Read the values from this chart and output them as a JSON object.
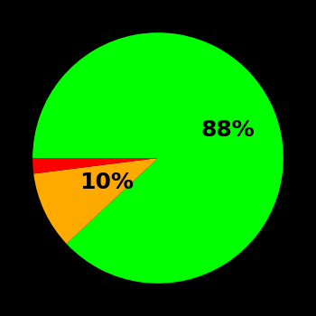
{
  "slices": [
    88,
    10,
    2
  ],
  "colors": [
    "#00ff00",
    "#ffaa00",
    "#ff0000"
  ],
  "labels": [
    "88%",
    "10%",
    ""
  ],
  "background_color": "#000000",
  "startangle": 180,
  "figsize": [
    3.5,
    3.5
  ],
  "dpi": 100,
  "text_color": "#000000",
  "fontsize": 18,
  "fontweight": "bold",
  "label_radii": [
    0.6,
    0.45,
    0.0
  ]
}
